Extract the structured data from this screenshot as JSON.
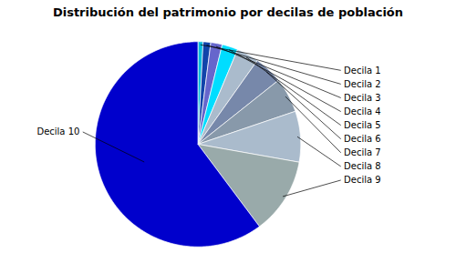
{
  "chart_data": {
    "type": "pie",
    "title": "Distribución del patrimonio por decilas de población",
    "categories": [
      "Decila 1",
      "Decila 2",
      "Decila 3",
      "Decila 4",
      "Decila 5",
      "Decila 6",
      "Decila 7",
      "Decila 8",
      "Decila 9",
      "Decila 10"
    ],
    "values": [
      0.8,
      1.2,
      1.8,
      2.5,
      3.5,
      4.5,
      5.5,
      8.0,
      12.0,
      60.2
    ],
    "colors": [
      "#00BBDD",
      "#1144AA",
      "#6666CC",
      "#00DDFF",
      "#AABBCC",
      "#7788AA",
      "#8899AA",
      "#AABBCC",
      "#99AAAA",
      "#0000CC"
    ]
  }
}
